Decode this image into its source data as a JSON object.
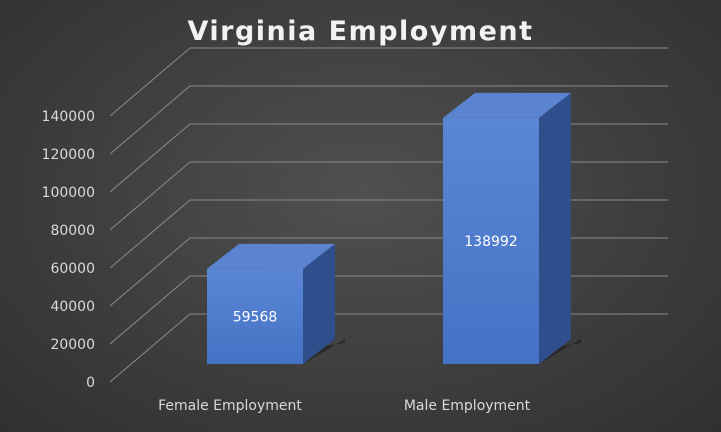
{
  "chart_data": {
    "type": "bar",
    "title": "Virginia Employment",
    "categories": [
      "Female Employment",
      "Male Employment"
    ],
    "values": [
      59568,
      138992
    ],
    "data_labels": [
      "59568",
      "138992"
    ],
    "xlabel": "",
    "ylabel": "",
    "ylim": [
      0,
      140000
    ],
    "y_ticks": [
      "0",
      "20000",
      "40000",
      "60000",
      "80000",
      "100000",
      "120000",
      "140000"
    ],
    "grid": true,
    "legend": "none",
    "style": "3d-column",
    "colors": {
      "bar_front": "#4472c4",
      "bar_side": "#2f4f8c",
      "bar_top": "#5a84d0",
      "gridline": "#8a8a8a",
      "text": "#d9d9d9",
      "title": "#f2f2f2",
      "background": "#404040"
    }
  }
}
